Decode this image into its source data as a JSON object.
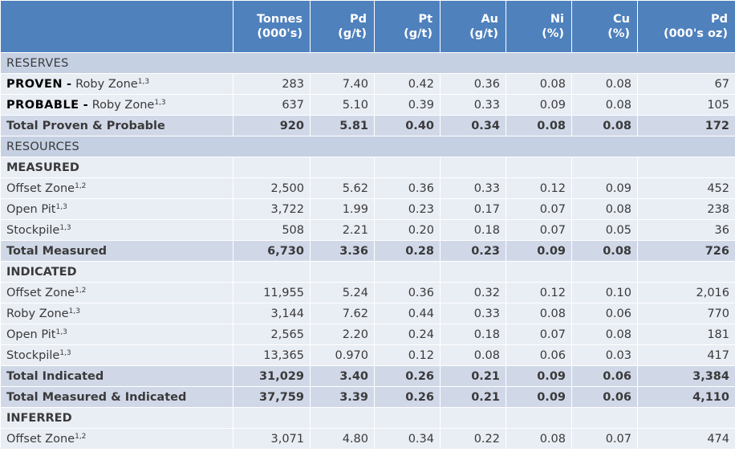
{
  "header": [
    "",
    "Tonnes\n(000's)",
    "Pd\n(g/t)",
    "Pt\n(g/t)",
    "Au\n(g/t)",
    "Ni\n(%)",
    "Cu\n(%)",
    "Pd\n(000's oz)"
  ],
  "rows": [
    {
      "type": "section",
      "label": "RESERVES"
    },
    {
      "type": "reserve",
      "prefix": "PROVEN",
      "sep": " - ",
      "label": "Roby Zone",
      "sup": "1,3",
      "values": [
        "283",
        "7.40",
        "0.42",
        "0.36",
        "0.08",
        "0.08",
        "67"
      ]
    },
    {
      "type": "reserve",
      "prefix": "PROBABLE",
      "sep": " - ",
      "label": "Roby Zone",
      "sup": "1,3",
      "values": [
        "637",
        "5.10",
        "0.39",
        "0.33",
        "0.09",
        "0.08",
        "105"
      ]
    },
    {
      "type": "total",
      "label": "Total Proven & Probable",
      "values": [
        "920",
        "5.81",
        "0.40",
        "0.34",
        "0.08",
        "0.08",
        "172"
      ]
    },
    {
      "type": "section",
      "label": "RESOURCES"
    },
    {
      "type": "sub",
      "label": "MEASURED"
    },
    {
      "type": "item",
      "label": "Offset Zone",
      "sup": "1,2",
      "values": [
        "2,500",
        "5.62",
        "0.36",
        "0.33",
        "0.12",
        "0.09",
        "452"
      ]
    },
    {
      "type": "item",
      "label": "Open Pit",
      "sup": "1,3",
      "values": [
        "3,722",
        "1.99",
        "0.23",
        "0.17",
        "0.07",
        "0.08",
        "238"
      ]
    },
    {
      "type": "item",
      "label": "Stockpile",
      "sup": "1,3",
      "values": [
        "508",
        "2.21",
        "0.20",
        "0.18",
        "0.07",
        "0.05",
        "36"
      ]
    },
    {
      "type": "total",
      "label": "Total Measured",
      "values": [
        "6,730",
        "3.36",
        "0.28",
        "0.23",
        "0.09",
        "0.08",
        "726"
      ]
    },
    {
      "type": "sub",
      "label": "INDICATED"
    },
    {
      "type": "item",
      "label": "Offset Zone",
      "sup": "1,2",
      "values": [
        "11,955",
        "5.24",
        "0.36",
        "0.32",
        "0.12",
        "0.10",
        "2,016"
      ]
    },
    {
      "type": "item",
      "label": "Roby Zone",
      "sup": "1,3",
      "values": [
        "3,144",
        "7.62",
        "0.44",
        "0.33",
        "0.08",
        "0.06",
        "770"
      ]
    },
    {
      "type": "item",
      "label": "Open Pit",
      "sup": "1,3",
      "values": [
        "2,565",
        "2.20",
        "0.24",
        "0.18",
        "0.07",
        "0.08",
        "181"
      ]
    },
    {
      "type": "item",
      "label": "Stockpile",
      "sup": "1,3",
      "values": [
        "13,365",
        "0.970",
        "0.12",
        "0.08",
        "0.06",
        "0.03",
        "417"
      ]
    },
    {
      "type": "total",
      "label": "Total Indicated",
      "values": [
        "31,029",
        "3.40",
        "0.26",
        "0.21",
        "0.09",
        "0.06",
        "3,384"
      ]
    },
    {
      "type": "total",
      "label": "Total Measured & Indicated",
      "values": [
        "37,759",
        "3.39",
        "0.26",
        "0.21",
        "0.09",
        "0.06",
        "4,110"
      ]
    },
    {
      "type": "sub",
      "label": "INFERRED"
    },
    {
      "type": "item",
      "label": "Offset Zone",
      "sup": "1,2",
      "values": [
        "3,071",
        "4.80",
        "0.34",
        "0.22",
        "0.08",
        "0.07",
        "474"
      ]
    }
  ]
}
